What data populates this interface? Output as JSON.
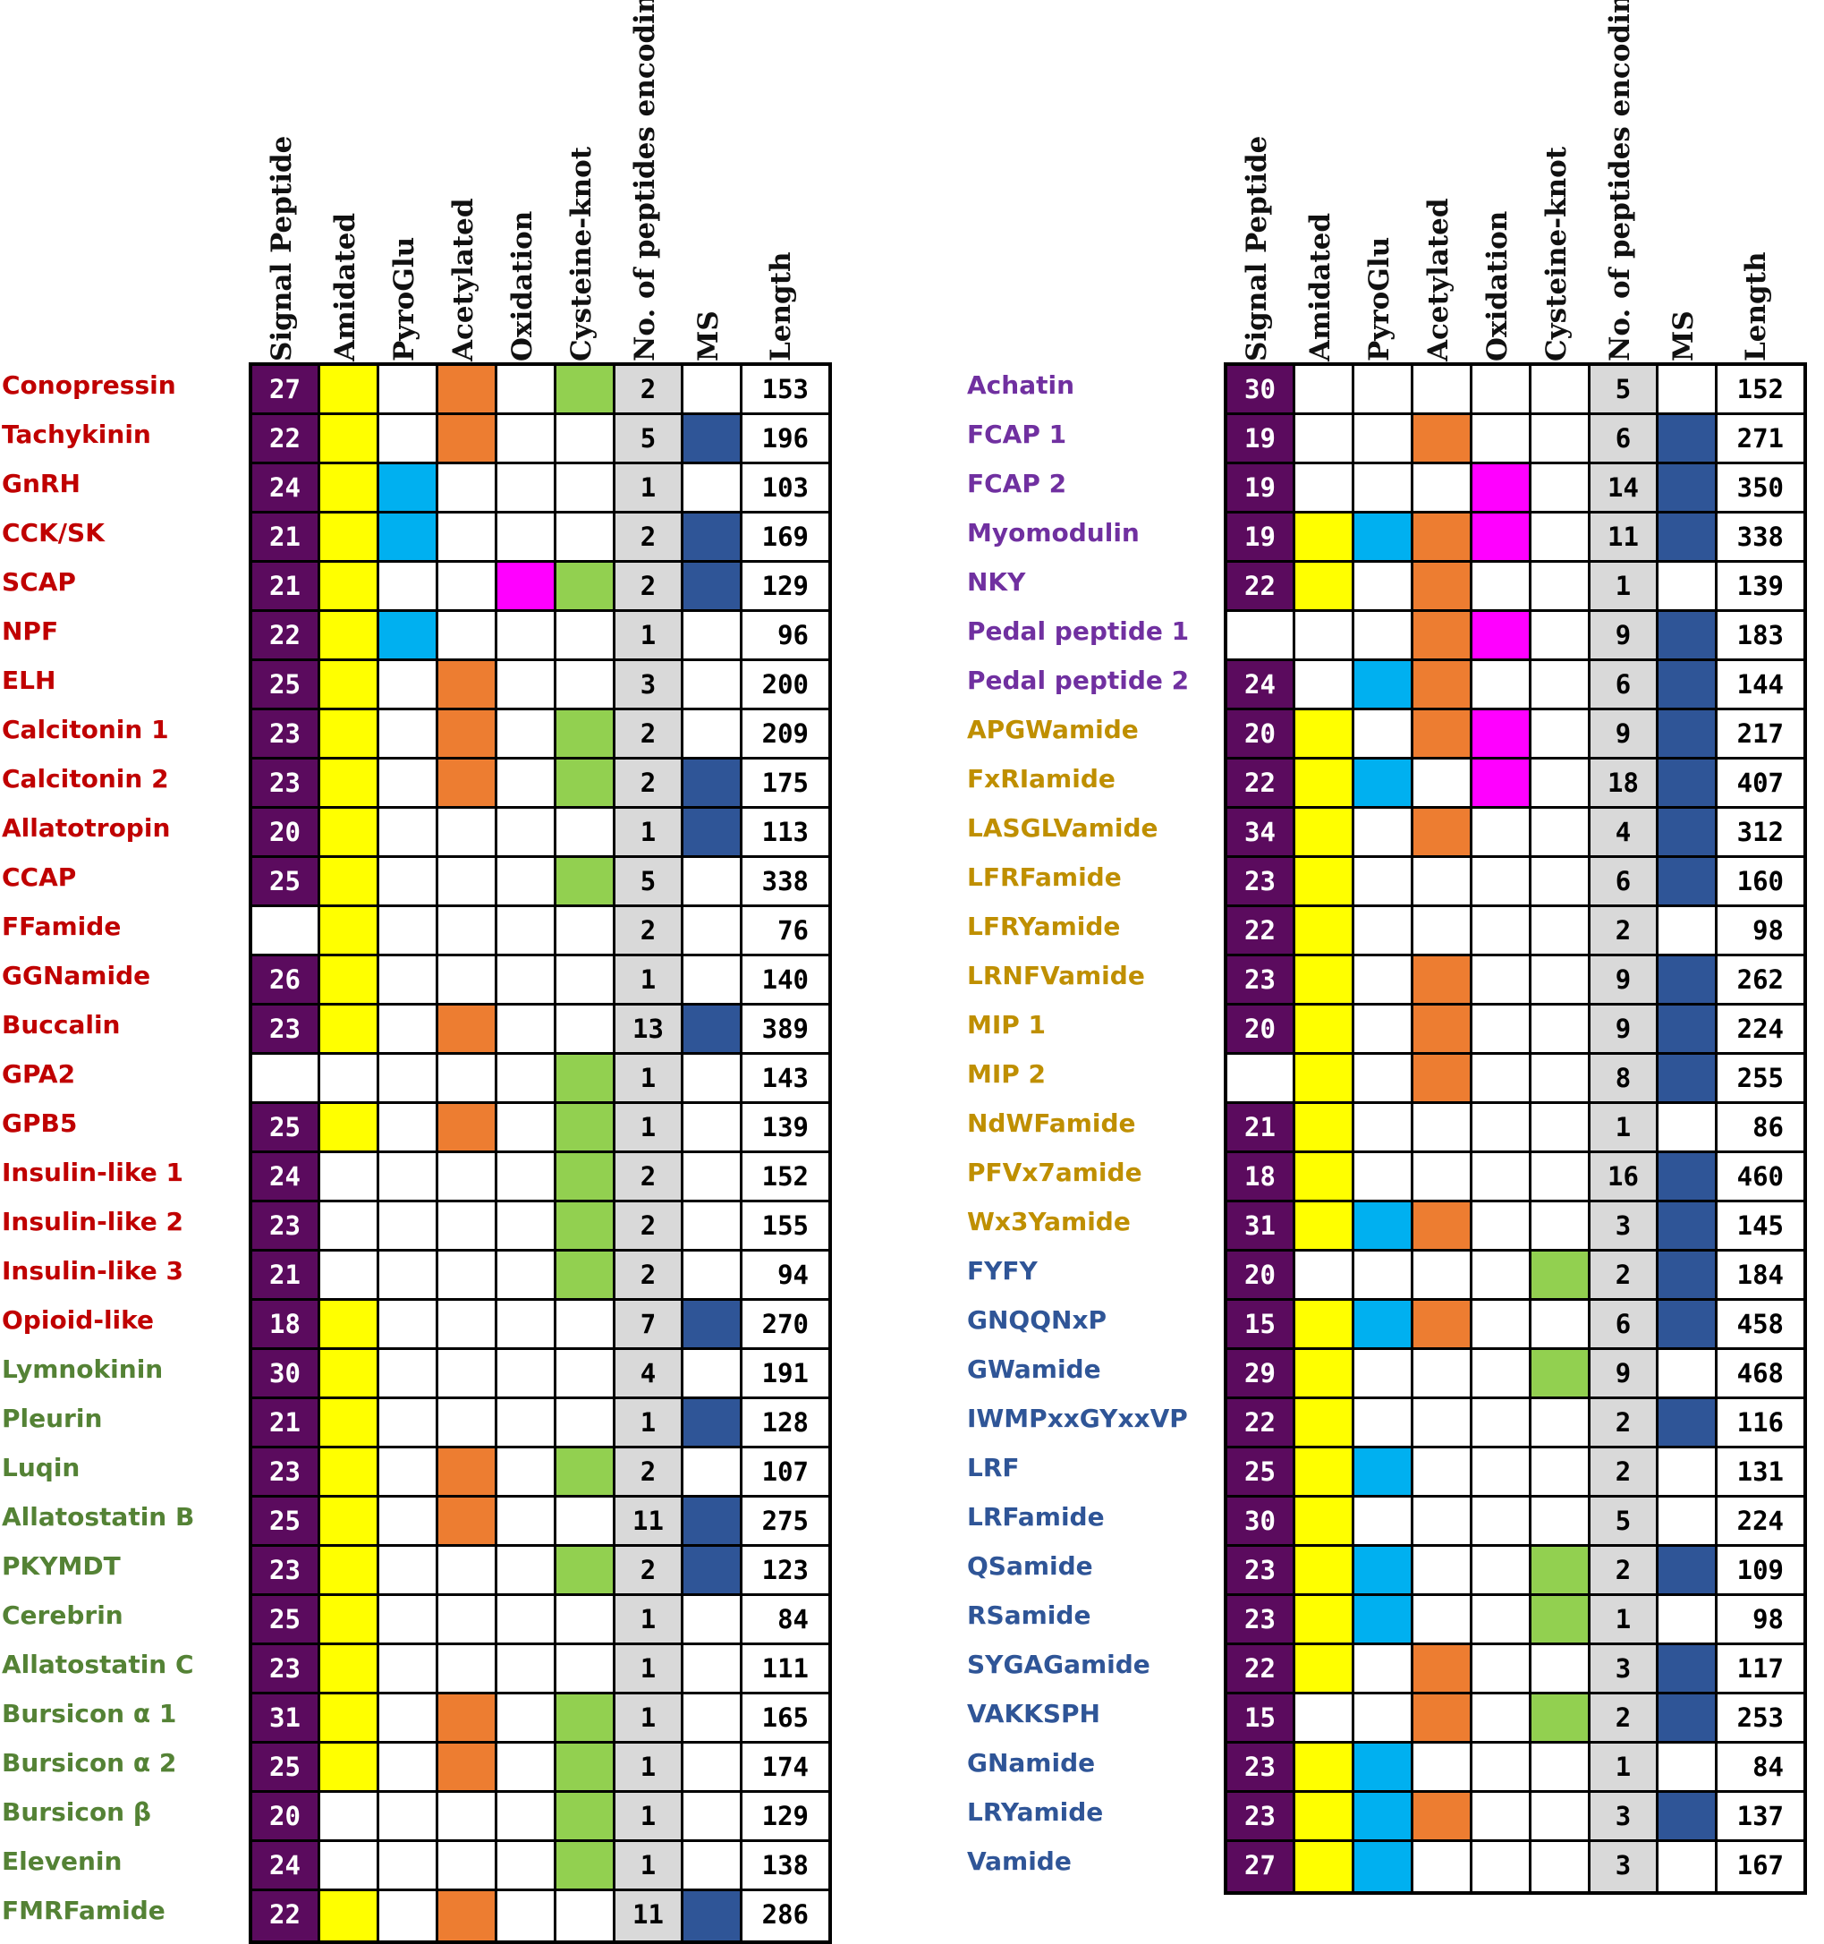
{
  "chart_data": {
    "type": "table",
    "title": "",
    "columns": [
      "Signal Peptide",
      "Amidated",
      "PyroGlu",
      "Acetylated",
      "Oxidation",
      "Cysteine-knot",
      "No. of peptides encoding",
      "MS",
      "Length"
    ],
    "colors": {
      "signal": "#5b0b5e",
      "amidated": "#ffff00",
      "pyroglu": "#00b0f0",
      "acetylated": "#ed7d31",
      "oxidation": "#ff00ff",
      "cysteine_knot": "#92d050",
      "count_bg": "#d9d9d9",
      "ms": "#2f5597"
    },
    "label_colors": {
      "red": "#c00000",
      "green": "#548235",
      "purple": "#7030a0",
      "gold": "#bf8f00",
      "blue": "#2f5597"
    },
    "left_table": [
      {
        "name": "Conopressin",
        "group": "red",
        "signal": "27",
        "amidated": true,
        "pyroglu": false,
        "acetylated": true,
        "oxidation": false,
        "cknot": true,
        "count": "2",
        "ms": false,
        "length": "153"
      },
      {
        "name": "Tachykinin",
        "group": "red",
        "signal": "22",
        "amidated": true,
        "pyroglu": false,
        "acetylated": true,
        "oxidation": false,
        "cknot": false,
        "count": "5",
        "ms": true,
        "length": "196"
      },
      {
        "name": "GnRH",
        "group": "red",
        "signal": "24",
        "amidated": true,
        "pyroglu": true,
        "acetylated": false,
        "oxidation": false,
        "cknot": false,
        "count": "1",
        "ms": false,
        "length": "103"
      },
      {
        "name": "CCK/SK",
        "group": "red",
        "signal": "21",
        "amidated": true,
        "pyroglu": true,
        "acetylated": false,
        "oxidation": false,
        "cknot": false,
        "count": "2",
        "ms": true,
        "length": "169"
      },
      {
        "name": "SCAP",
        "group": "red",
        "signal": "21",
        "amidated": true,
        "pyroglu": false,
        "acetylated": false,
        "oxidation": true,
        "cknot": true,
        "count": "2",
        "ms": true,
        "length": "129"
      },
      {
        "name": "NPF",
        "group": "red",
        "signal": "22",
        "amidated": true,
        "pyroglu": true,
        "acetylated": false,
        "oxidation": false,
        "cknot": false,
        "count": "1",
        "ms": false,
        "length": "96"
      },
      {
        "name": "ELH",
        "group": "red",
        "signal": "25",
        "amidated": true,
        "pyroglu": false,
        "acetylated": true,
        "oxidation": false,
        "cknot": false,
        "count": "3",
        "ms": false,
        "length": "200"
      },
      {
        "name": "Calcitonin 1",
        "group": "red",
        "signal": "23",
        "amidated": true,
        "pyroglu": false,
        "acetylated": true,
        "oxidation": false,
        "cknot": true,
        "count": "2",
        "ms": false,
        "length": "209"
      },
      {
        "name": "Calcitonin 2",
        "group": "red",
        "signal": "23",
        "amidated": true,
        "pyroglu": false,
        "acetylated": true,
        "oxidation": false,
        "cknot": true,
        "count": "2",
        "ms": true,
        "length": "175"
      },
      {
        "name": "Allatotropin",
        "group": "red",
        "signal": "20",
        "amidated": true,
        "pyroglu": false,
        "acetylated": false,
        "oxidation": false,
        "cknot": false,
        "count": "1",
        "ms": true,
        "length": "113"
      },
      {
        "name": "CCAP",
        "group": "red",
        "signal": "25",
        "amidated": true,
        "pyroglu": false,
        "acetylated": false,
        "oxidation": false,
        "cknot": true,
        "count": "5",
        "ms": false,
        "length": "338"
      },
      {
        "name": "FFamide",
        "group": "red",
        "signal": "",
        "amidated": true,
        "pyroglu": false,
        "acetylated": false,
        "oxidation": false,
        "cknot": false,
        "count": "2",
        "ms": false,
        "length": "76"
      },
      {
        "name": "GGNamide",
        "group": "red",
        "signal": "26",
        "amidated": true,
        "pyroglu": false,
        "acetylated": false,
        "oxidation": false,
        "cknot": false,
        "count": "1",
        "ms": false,
        "length": "140"
      },
      {
        "name": "Buccalin",
        "group": "red",
        "signal": "23",
        "amidated": true,
        "pyroglu": false,
        "acetylated": true,
        "oxidation": false,
        "cknot": false,
        "count": "13",
        "ms": true,
        "length": "389"
      },
      {
        "name": "GPA2",
        "group": "red",
        "signal": "",
        "amidated": false,
        "pyroglu": false,
        "acetylated": false,
        "oxidation": false,
        "cknot": true,
        "count": "1",
        "ms": false,
        "length": "143"
      },
      {
        "name": "GPB5",
        "group": "red",
        "signal": "25",
        "amidated": true,
        "pyroglu": false,
        "acetylated": true,
        "oxidation": false,
        "cknot": true,
        "count": "1",
        "ms": false,
        "length": "139"
      },
      {
        "name": "Insulin-like 1",
        "group": "red",
        "signal": "24",
        "amidated": false,
        "pyroglu": false,
        "acetylated": false,
        "oxidation": false,
        "cknot": true,
        "count": "2",
        "ms": false,
        "length": "152"
      },
      {
        "name": "Insulin-like 2",
        "group": "red",
        "signal": "23",
        "amidated": false,
        "pyroglu": false,
        "acetylated": false,
        "oxidation": false,
        "cknot": true,
        "count": "2",
        "ms": false,
        "length": "155"
      },
      {
        "name": "Insulin-like 3",
        "group": "red",
        "signal": "21",
        "amidated": false,
        "pyroglu": false,
        "acetylated": false,
        "oxidation": false,
        "cknot": true,
        "count": "2",
        "ms": false,
        "length": "94"
      },
      {
        "name": "Opioid-like",
        "group": "red",
        "signal": "18",
        "amidated": true,
        "pyroglu": false,
        "acetylated": false,
        "oxidation": false,
        "cknot": false,
        "count": "7",
        "ms": true,
        "length": "270"
      },
      {
        "name": "Lymnokinin",
        "group": "green",
        "signal": "30",
        "amidated": true,
        "pyroglu": false,
        "acetylated": false,
        "oxidation": false,
        "cknot": false,
        "count": "4",
        "ms": false,
        "length": "191"
      },
      {
        "name": "Pleurin",
        "group": "green",
        "signal": "21",
        "amidated": true,
        "pyroglu": false,
        "acetylated": false,
        "oxidation": false,
        "cknot": false,
        "count": "1",
        "ms": true,
        "length": "128"
      },
      {
        "name": "Luqin",
        "group": "green",
        "signal": "23",
        "amidated": true,
        "pyroglu": false,
        "acetylated": true,
        "oxidation": false,
        "cknot": true,
        "count": "2",
        "ms": false,
        "length": "107"
      },
      {
        "name": "Allatostatin B",
        "group": "green",
        "signal": "25",
        "amidated": true,
        "pyroglu": false,
        "acetylated": true,
        "oxidation": false,
        "cknot": false,
        "count": "11",
        "ms": true,
        "length": "275"
      },
      {
        "name": "PKYMDT",
        "group": "green",
        "signal": "23",
        "amidated": true,
        "pyroglu": false,
        "acetylated": false,
        "oxidation": false,
        "cknot": true,
        "count": "2",
        "ms": true,
        "length": "123"
      },
      {
        "name": "Cerebrin",
        "group": "green",
        "signal": "25",
        "amidated": true,
        "pyroglu": false,
        "acetylated": false,
        "oxidation": false,
        "cknot": false,
        "count": "1",
        "ms": false,
        "length": "84"
      },
      {
        "name": "Allatostatin C",
        "group": "green",
        "signal": "23",
        "amidated": true,
        "pyroglu": false,
        "acetylated": false,
        "oxidation": false,
        "cknot": false,
        "count": "1",
        "ms": false,
        "length": "111"
      },
      {
        "name": "Bursicon α 1",
        "group": "green",
        "signal": "31",
        "amidated": true,
        "pyroglu": false,
        "acetylated": true,
        "oxidation": false,
        "cknot": true,
        "count": "1",
        "ms": false,
        "length": "165"
      },
      {
        "name": "Bursicon α 2",
        "group": "green",
        "signal": "25",
        "amidated": true,
        "pyroglu": false,
        "acetylated": true,
        "oxidation": false,
        "cknot": true,
        "count": "1",
        "ms": false,
        "length": "174"
      },
      {
        "name": "Bursicon β",
        "group": "green",
        "signal": "20",
        "amidated": false,
        "pyroglu": false,
        "acetylated": false,
        "oxidation": false,
        "cknot": true,
        "count": "1",
        "ms": false,
        "length": "129"
      },
      {
        "name": "Elevenin",
        "group": "green",
        "signal": "24",
        "amidated": false,
        "pyroglu": false,
        "acetylated": false,
        "oxidation": false,
        "cknot": true,
        "count": "1",
        "ms": false,
        "length": "138"
      },
      {
        "name": "FMRFamide",
        "group": "green",
        "signal": "22",
        "amidated": true,
        "pyroglu": false,
        "acetylated": true,
        "oxidation": false,
        "cknot": false,
        "count": "11",
        "ms": true,
        "length": "286"
      }
    ],
    "right_table": [
      {
        "name": "Achatin",
        "group": "purple",
        "signal": "30",
        "amidated": false,
        "pyroglu": false,
        "acetylated": false,
        "oxidation": false,
        "cknot": false,
        "count": "5",
        "ms": false,
        "length": "152"
      },
      {
        "name": "FCAP 1",
        "group": "purple",
        "signal": "19",
        "amidated": false,
        "pyroglu": false,
        "acetylated": true,
        "oxidation": false,
        "cknot": false,
        "count": "6",
        "ms": true,
        "length": "271"
      },
      {
        "name": "FCAP 2",
        "group": "purple",
        "signal": "19",
        "amidated": false,
        "pyroglu": false,
        "acetylated": false,
        "oxidation": true,
        "cknot": false,
        "count": "14",
        "ms": true,
        "length": "350"
      },
      {
        "name": "Myomodulin",
        "group": "purple",
        "signal": "19",
        "amidated": true,
        "pyroglu": true,
        "acetylated": true,
        "oxidation": true,
        "cknot": false,
        "count": "11",
        "ms": true,
        "length": "338"
      },
      {
        "name": "NKY",
        "group": "purple",
        "signal": "22",
        "amidated": true,
        "pyroglu": false,
        "acetylated": true,
        "oxidation": false,
        "cknot": false,
        "count": "1",
        "ms": false,
        "length": "139"
      },
      {
        "name": "Pedal peptide 1",
        "group": "purple",
        "signal": "",
        "amidated": false,
        "pyroglu": false,
        "acetylated": true,
        "oxidation": true,
        "cknot": false,
        "count": "9",
        "ms": true,
        "length": "183"
      },
      {
        "name": "Pedal peptide 2",
        "group": "purple",
        "signal": "24",
        "amidated": false,
        "pyroglu": true,
        "acetylated": true,
        "oxidation": false,
        "cknot": false,
        "count": "6",
        "ms": true,
        "length": "144"
      },
      {
        "name": "APGWamide",
        "group": "gold",
        "signal": "20",
        "amidated": true,
        "pyroglu": false,
        "acetylated": true,
        "oxidation": true,
        "cknot": false,
        "count": "9",
        "ms": true,
        "length": "217"
      },
      {
        "name": "FxRIamide",
        "group": "gold",
        "signal": "22",
        "amidated": true,
        "pyroglu": true,
        "acetylated": false,
        "oxidation": true,
        "cknot": false,
        "count": "18",
        "ms": true,
        "length": "407"
      },
      {
        "name": "LASGLVamide",
        "group": "gold",
        "signal": "34",
        "amidated": true,
        "pyroglu": false,
        "acetylated": true,
        "oxidation": false,
        "cknot": false,
        "count": "4",
        "ms": true,
        "length": "312"
      },
      {
        "name": "LFRFamide",
        "group": "gold",
        "signal": "23",
        "amidated": true,
        "pyroglu": false,
        "acetylated": false,
        "oxidation": false,
        "cknot": false,
        "count": "6",
        "ms": true,
        "length": "160"
      },
      {
        "name": "LFRYamide",
        "group": "gold",
        "signal": "22",
        "amidated": true,
        "pyroglu": false,
        "acetylated": false,
        "oxidation": false,
        "cknot": false,
        "count": "2",
        "ms": false,
        "length": "98"
      },
      {
        "name": "LRNFVamide",
        "group": "gold",
        "signal": "23",
        "amidated": true,
        "pyroglu": false,
        "acetylated": true,
        "oxidation": false,
        "cknot": false,
        "count": "9",
        "ms": true,
        "length": "262"
      },
      {
        "name": "MIP 1",
        "group": "gold",
        "signal": "20",
        "amidated": true,
        "pyroglu": false,
        "acetylated": true,
        "oxidation": false,
        "cknot": false,
        "count": "9",
        "ms": true,
        "length": "224"
      },
      {
        "name": "MIP 2",
        "group": "gold",
        "signal": "",
        "amidated": true,
        "pyroglu": false,
        "acetylated": true,
        "oxidation": false,
        "cknot": false,
        "count": "8",
        "ms": true,
        "length": "255"
      },
      {
        "name": "NdWFamide",
        "group": "gold",
        "signal": "21",
        "amidated": true,
        "pyroglu": false,
        "acetylated": false,
        "oxidation": false,
        "cknot": false,
        "count": "1",
        "ms": false,
        "length": "86"
      },
      {
        "name": "PFVx7amide",
        "group": "gold",
        "signal": "18",
        "amidated": true,
        "pyroglu": false,
        "acetylated": false,
        "oxidation": false,
        "cknot": false,
        "count": "16",
        "ms": true,
        "length": "460"
      },
      {
        "name": "Wx3Yamide",
        "group": "gold",
        "signal": "31",
        "amidated": true,
        "pyroglu": true,
        "acetylated": true,
        "oxidation": false,
        "cknot": false,
        "count": "3",
        "ms": true,
        "length": "145"
      },
      {
        "name": "FYFY",
        "group": "blue",
        "signal": "20",
        "amidated": false,
        "pyroglu": false,
        "acetylated": false,
        "oxidation": false,
        "cknot": true,
        "count": "2",
        "ms": true,
        "length": "184"
      },
      {
        "name": "GNQQNxP",
        "group": "blue",
        "signal": "15",
        "amidated": true,
        "pyroglu": true,
        "acetylated": true,
        "oxidation": false,
        "cknot": false,
        "count": "6",
        "ms": true,
        "length": "458"
      },
      {
        "name": "GWamide",
        "group": "blue",
        "signal": "29",
        "amidated": true,
        "pyroglu": false,
        "acetylated": false,
        "oxidation": false,
        "cknot": true,
        "count": "9",
        "ms": false,
        "length": "468"
      },
      {
        "name": "IWMPxxGYxxVP",
        "group": "blue",
        "signal": "22",
        "amidated": true,
        "pyroglu": false,
        "acetylated": false,
        "oxidation": false,
        "cknot": false,
        "count": "2",
        "ms": true,
        "length": "116"
      },
      {
        "name": "LRF",
        "group": "blue",
        "signal": "25",
        "amidated": true,
        "pyroglu": true,
        "acetylated": false,
        "oxidation": false,
        "cknot": false,
        "count": "2",
        "ms": false,
        "length": "131"
      },
      {
        "name": "LRFamide",
        "group": "blue",
        "signal": "30",
        "amidated": true,
        "pyroglu": false,
        "acetylated": false,
        "oxidation": false,
        "cknot": false,
        "count": "5",
        "ms": false,
        "length": "224"
      },
      {
        "name": "QSamide",
        "group": "blue",
        "signal": "23",
        "amidated": true,
        "pyroglu": true,
        "acetylated": false,
        "oxidation": false,
        "cknot": true,
        "count": "2",
        "ms": true,
        "length": "109"
      },
      {
        "name": "RSamide",
        "group": "blue",
        "signal": "23",
        "amidated": true,
        "pyroglu": true,
        "acetylated": false,
        "oxidation": false,
        "cknot": true,
        "count": "1",
        "ms": false,
        "length": "98"
      },
      {
        "name": "SYGAGamide",
        "group": "blue",
        "signal": "22",
        "amidated": true,
        "pyroglu": false,
        "acetylated": true,
        "oxidation": false,
        "cknot": false,
        "count": "3",
        "ms": true,
        "length": "117"
      },
      {
        "name": "VAKKSPH",
        "group": "blue",
        "signal": "15",
        "amidated": false,
        "pyroglu": false,
        "acetylated": true,
        "oxidation": false,
        "cknot": true,
        "count": "2",
        "ms": true,
        "length": "253"
      },
      {
        "name": "GNamide",
        "group": "blue",
        "signal": "23",
        "amidated": true,
        "pyroglu": true,
        "acetylated": false,
        "oxidation": false,
        "cknot": false,
        "count": "1",
        "ms": false,
        "length": "84"
      },
      {
        "name": "LRYamide",
        "group": "blue",
        "signal": "23",
        "amidated": true,
        "pyroglu": true,
        "acetylated": true,
        "oxidation": false,
        "cknot": false,
        "count": "3",
        "ms": true,
        "length": "137"
      },
      {
        "name": "Vamide",
        "group": "blue",
        "signal": "27",
        "amidated": true,
        "pyroglu": true,
        "acetylated": false,
        "oxidation": false,
        "cknot": false,
        "count": "3",
        "ms": false,
        "length": "167"
      }
    ]
  }
}
